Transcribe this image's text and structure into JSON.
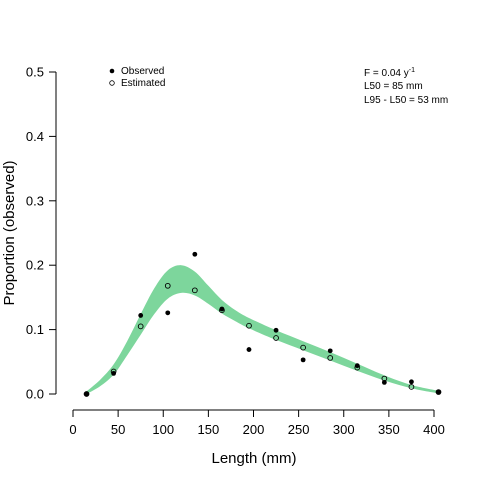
{
  "chart_data": {
    "type": "scatter",
    "xlabel": "Length (mm)",
    "ylabel": "Proportion (observed)",
    "xlim": [
      0,
      400
    ],
    "ylim": [
      0,
      0.5
    ],
    "x_ticks": [
      "0",
      "50",
      "100",
      "150",
      "200",
      "250",
      "300",
      "350",
      "400"
    ],
    "y_ticks": [
      "0.0",
      "0.1",
      "0.2",
      "0.3",
      "0.4",
      "0.5"
    ],
    "grid": false,
    "legend_position": "top-left",
    "legend": [
      {
        "label": "Observed",
        "marker": "filled-circle"
      },
      {
        "label": "Estimated",
        "marker": "open-circle"
      }
    ],
    "annotations": {
      "f_prefix": "F = 0.04 y",
      "f_exponent": "-1",
      "l50": "L50 = 85 mm",
      "l95": "L95 - L50 = 53 mm"
    },
    "series": [
      {
        "name": "Observed",
        "x": [
          15,
          45,
          75,
          105,
          135,
          165,
          195,
          225,
          255,
          285,
          315,
          345,
          375,
          405
        ],
        "y": [
          0.0,
          0.032,
          0.122,
          0.126,
          0.217,
          0.132,
          0.069,
          0.099,
          0.053,
          0.067,
          0.044,
          0.018,
          0.019,
          0.003
        ]
      },
      {
        "name": "Estimated",
        "x": [
          15,
          45,
          75,
          105,
          135,
          165,
          195,
          225,
          255,
          285,
          315,
          345,
          375,
          405
        ],
        "y": [
          0.0,
          0.035,
          0.105,
          0.168,
          0.161,
          0.13,
          0.106,
          0.087,
          0.072,
          0.056,
          0.041,
          0.024,
          0.011,
          0.003
        ]
      }
    ],
    "band": {
      "color": "#7dd69c",
      "x": [
        15,
        30,
        45,
        60,
        75,
        90,
        105,
        120,
        135,
        150,
        165,
        180,
        195,
        225,
        255,
        285,
        315,
        345,
        375,
        405
      ],
      "lower": [
        0.0,
        0.012,
        0.03,
        0.06,
        0.092,
        0.124,
        0.148,
        0.157,
        0.153,
        0.14,
        0.125,
        0.113,
        0.102,
        0.084,
        0.068,
        0.052,
        0.036,
        0.021,
        0.009,
        0.001
      ],
      "upper": [
        0.004,
        0.022,
        0.046,
        0.082,
        0.124,
        0.164,
        0.192,
        0.2,
        0.19,
        0.168,
        0.146,
        0.13,
        0.118,
        0.099,
        0.082,
        0.065,
        0.047,
        0.029,
        0.014,
        0.005
      ]
    }
  }
}
